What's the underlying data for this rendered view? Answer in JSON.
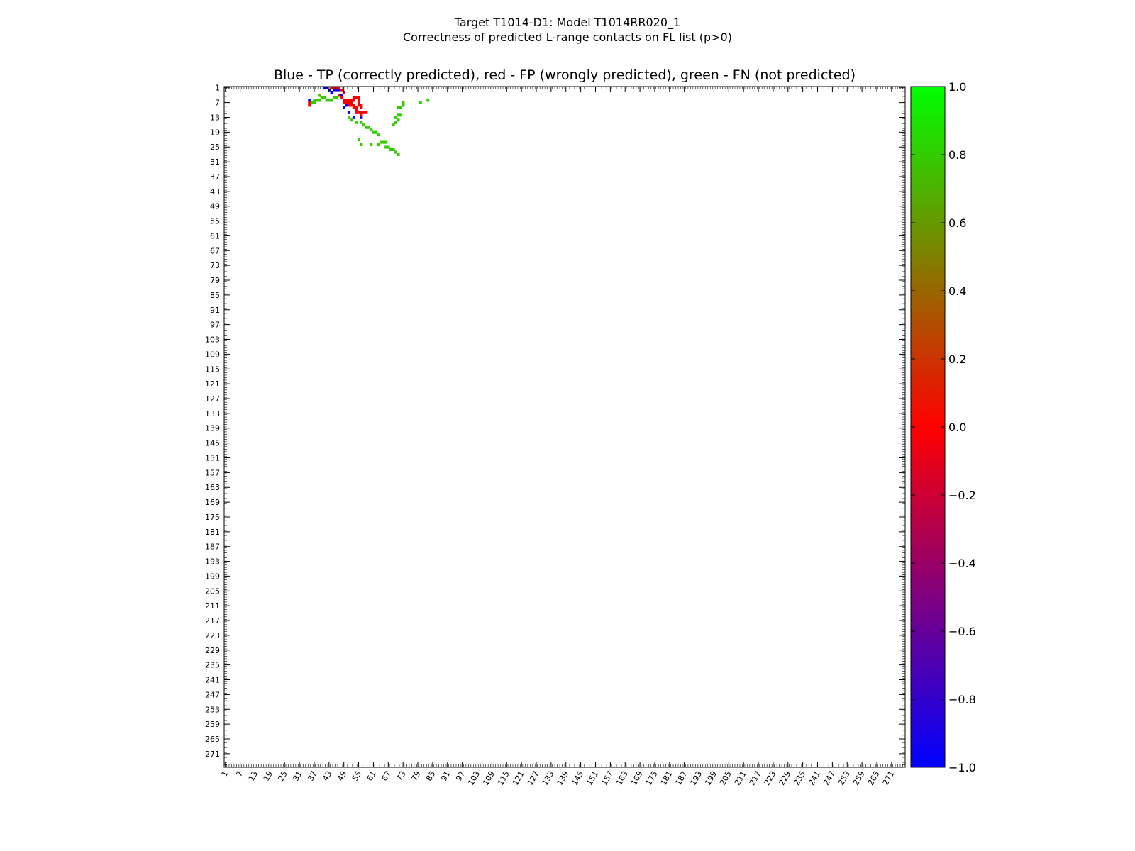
{
  "suptitle": {
    "line1": "Target T1014-D1: Model T1014RR020_1",
    "line2": "Correctness of predicted L-range contacts on FL list (p>0)"
  },
  "chart_data": {
    "type": "heatmap",
    "title": "Blue - TP (correctly predicted), red - FP (wrongly predicted), green - FN (not predicted)",
    "n_residues": 276,
    "tick_labels": [
      "1",
      "7",
      "13",
      "19",
      "25",
      "31",
      "37",
      "43",
      "49",
      "55",
      "61",
      "67",
      "73",
      "79",
      "85",
      "91",
      "97",
      "103",
      "109",
      "115",
      "121",
      "127",
      "133",
      "139",
      "145",
      "151",
      "157",
      "163",
      "169",
      "175",
      "181",
      "187",
      "193",
      "199",
      "205",
      "211",
      "217",
      "223",
      "229",
      "235",
      "241",
      "247",
      "253",
      "259",
      "265",
      "271"
    ],
    "legend": {
      "blue": "TP (correctly predicted)",
      "red": "FP (wrongly predicted)",
      "green": "FN (not predicted)"
    },
    "colors": {
      "TP": "#0000ff",
      "FP": "#ff0000",
      "FN": "#33cc00",
      "FN_light": "#33dd11"
    },
    "colorbar": {
      "range": [
        -1.0,
        1.0
      ],
      "tick_labels": [
        "1.0",
        "0.8",
        "0.6",
        "0.4",
        "0.2",
        "0.0",
        "−0.2",
        "−0.4",
        "−0.6",
        "−0.8",
        "−1.0"
      ],
      "colors": [
        "#0000ff",
        "#ff0000",
        "#00ff00"
      ]
    },
    "regions": [
      {
        "label": "TP",
        "cells": [
          [
            41,
            1
          ],
          [
            42,
            1
          ],
          [
            43,
            2
          ],
          [
            44,
            3
          ],
          [
            45,
            2
          ],
          [
            46,
            2
          ],
          [
            35,
            6
          ],
          [
            48,
            4
          ],
          [
            49,
            9
          ],
          [
            50,
            8
          ],
          [
            51,
            11
          ],
          [
            53,
            13
          ],
          [
            56,
            13
          ],
          [
            46,
            1
          ],
          [
            47,
            2
          ]
        ]
      },
      {
        "label": "FP",
        "cells": [
          [
            44,
            1
          ],
          [
            45,
            1
          ],
          [
            46,
            1
          ],
          [
            47,
            1
          ],
          [
            48,
            2
          ],
          [
            49,
            3
          ],
          [
            47,
            4
          ],
          [
            48,
            5
          ],
          [
            49,
            6
          ],
          [
            50,
            6
          ],
          [
            51,
            6
          ],
          [
            52,
            6
          ],
          [
            53,
            6
          ],
          [
            49,
            7
          ],
          [
            50,
            7
          ],
          [
            51,
            7
          ],
          [
            52,
            7
          ],
          [
            51,
            8
          ],
          [
            52,
            8
          ],
          [
            53,
            8
          ],
          [
            53,
            9
          ],
          [
            56,
            9
          ],
          [
            56,
            12
          ],
          [
            35,
            7
          ],
          [
            35,
            8
          ],
          [
            53,
            5
          ],
          [
            54,
            5
          ],
          [
            55,
            5
          ],
          [
            55,
            6
          ],
          [
            55,
            7
          ],
          [
            55,
            8
          ],
          [
            56,
            8
          ],
          [
            54,
            9
          ],
          [
            54,
            10
          ],
          [
            54,
            11
          ],
          [
            55,
            11
          ],
          [
            56,
            11
          ],
          [
            57,
            11
          ],
          [
            58,
            11
          ]
        ]
      },
      {
        "label": "FN",
        "cells": [
          [
            39,
            4
          ],
          [
            40,
            5
          ],
          [
            41,
            5
          ],
          [
            42,
            6
          ],
          [
            43,
            6
          ],
          [
            44,
            6
          ],
          [
            38,
            6
          ],
          [
            39,
            6
          ],
          [
            37,
            7
          ],
          [
            37,
            6
          ],
          [
            36,
            7
          ],
          [
            45,
            5
          ],
          [
            46,
            5
          ],
          [
            51,
            13
          ],
          [
            52,
            14
          ],
          [
            54,
            15
          ],
          [
            56,
            15
          ],
          [
            57,
            16
          ],
          [
            58,
            17
          ],
          [
            59,
            17
          ],
          [
            61,
            19
          ],
          [
            62,
            19
          ],
          [
            63,
            20
          ],
          [
            60,
            18
          ],
          [
            55,
            22
          ],
          [
            56,
            24
          ],
          [
            60,
            24
          ],
          [
            63,
            24
          ],
          [
            64,
            23
          ],
          [
            65,
            23
          ],
          [
            66,
            23
          ],
          [
            66,
            25
          ],
          [
            67,
            25
          ],
          [
            68,
            26
          ],
          [
            69,
            26
          ],
          [
            70,
            27
          ],
          [
            71,
            28
          ],
          [
            69,
            16
          ],
          [
            70,
            15
          ],
          [
            71,
            14
          ],
          [
            70,
            13
          ],
          [
            71,
            12
          ],
          [
            72,
            12
          ],
          [
            71,
            9
          ],
          [
            72,
            9
          ],
          [
            73,
            8
          ],
          [
            73,
            7
          ],
          [
            80,
            7
          ],
          [
            83,
            6
          ]
        ]
      }
    ]
  }
}
